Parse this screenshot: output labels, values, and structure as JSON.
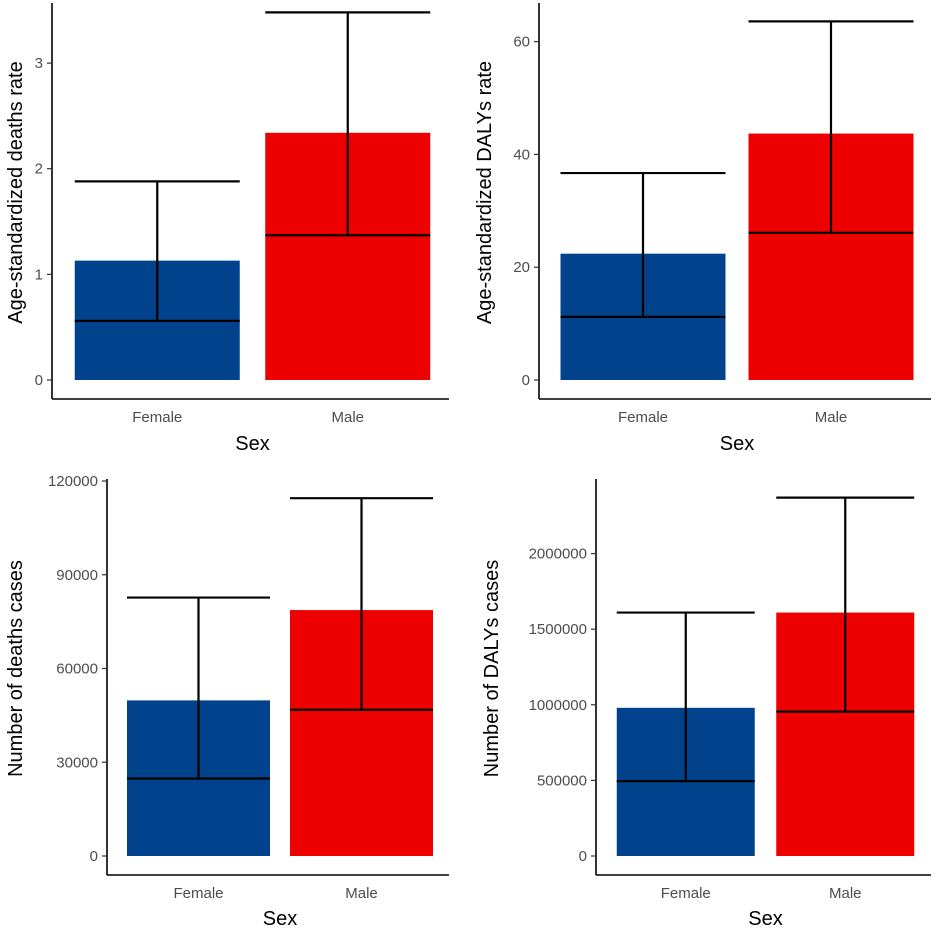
{
  "chart_data": [
    {
      "type": "bar",
      "xlabel": "Sex",
      "ylabel": "Age-standardized deaths rate",
      "categories": [
        "Female",
        "Male"
      ],
      "values": [
        1.13,
        2.34
      ],
      "error_lower": [
        0.56,
        1.37
      ],
      "error_upper": [
        1.88,
        3.48
      ],
      "colors": [
        "#00438C",
        "#EE0000"
      ],
      "ylim": [
        0,
        3.55
      ],
      "yticks": [
        0,
        1,
        2,
        3
      ],
      "ytick_labels": [
        "0",
        "1",
        "2",
        "3"
      ]
    },
    {
      "type": "bar",
      "xlabel": "Sex",
      "ylabel": "Age-standardized DALYs rate",
      "categories": [
        "Female",
        "Male"
      ],
      "values": [
        22.4,
        43.7
      ],
      "error_lower": [
        11.2,
        26.1
      ],
      "error_upper": [
        36.7,
        63.6
      ],
      "colors": [
        "#00438C",
        "#EE0000"
      ],
      "ylim": [
        0,
        66.5
      ],
      "yticks": [
        0,
        20,
        40,
        60
      ],
      "ytick_labels": [
        "0",
        "20",
        "40",
        "60"
      ]
    },
    {
      "type": "bar",
      "xlabel": "Sex",
      "ylabel": "Number of deaths cases",
      "categories": [
        "Female",
        "Male"
      ],
      "values": [
        49800,
        78700
      ],
      "error_lower": [
        24800,
        46800
      ],
      "error_upper": [
        82700,
        114500
      ],
      "colors": [
        "#00438C",
        "#EE0000"
      ],
      "ylim": [
        0,
        120000
      ],
      "yticks": [
        0,
        30000,
        60000,
        90000,
        120000
      ],
      "ytick_labels": [
        "0",
        "30000",
        "60000",
        "90000",
        "120000"
      ]
    },
    {
      "type": "bar",
      "xlabel": "Sex",
      "ylabel": "Number of DALYs cases",
      "categories": [
        "Female",
        "Male"
      ],
      "values": [
        980000,
        1610000
      ],
      "error_lower": [
        495000,
        955000
      ],
      "error_upper": [
        1610000,
        2370000
      ],
      "colors": [
        "#00438C",
        "#EE0000"
      ],
      "ylim": [
        0,
        2480000
      ],
      "yticks": [
        0,
        500000,
        1000000,
        1500000,
        2000000
      ],
      "ytick_labels": [
        "0",
        "500000",
        "1000000",
        "1500000",
        "2000000"
      ]
    }
  ]
}
